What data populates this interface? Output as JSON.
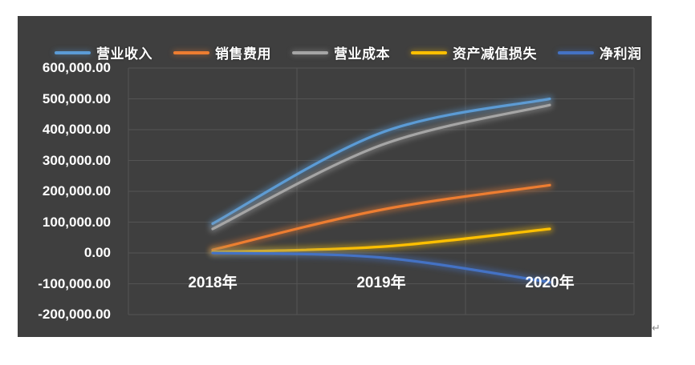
{
  "chart": {
    "background_color": "#3F3F3F",
    "gridline_color": "#545454",
    "label_color": "#FFFFFF"
  },
  "chart_data": {
    "type": "line",
    "smooth": true,
    "title": "",
    "xlabel": "",
    "ylabel": "",
    "grid": true,
    "legend_position": "top",
    "categories": [
      "2018年",
      "2019年",
      "2020年"
    ],
    "series": [
      {
        "name": "营业收入",
        "color": "#5B9BD5",
        "values": [
          95000,
          390000,
          500000
        ]
      },
      {
        "name": "销售费用",
        "color": "#ED7D31",
        "values": [
          10000,
          140000,
          220000
        ]
      },
      {
        "name": "营业成本",
        "color": "#A5A5A5",
        "values": [
          78000,
          350000,
          480000
        ]
      },
      {
        "name": "资产减值损失",
        "color": "#FFC000",
        "values": [
          3000,
          20000,
          78000
        ]
      },
      {
        "name": "净利润",
        "color": "#4472C4",
        "values": [
          0,
          -15000,
          -95000
        ]
      }
    ],
    "y_axis": {
      "min": -200000,
      "max": 600000,
      "step": 100000,
      "tick_labels": [
        "600,000.00",
        "500,000.00",
        "400,000.00",
        "300,000.00",
        "200,000.00",
        "100,000.00",
        "0.00",
        "-100,000.00",
        "-200,000.00"
      ]
    }
  },
  "annotations": {
    "paragraph_mark": "↵"
  }
}
